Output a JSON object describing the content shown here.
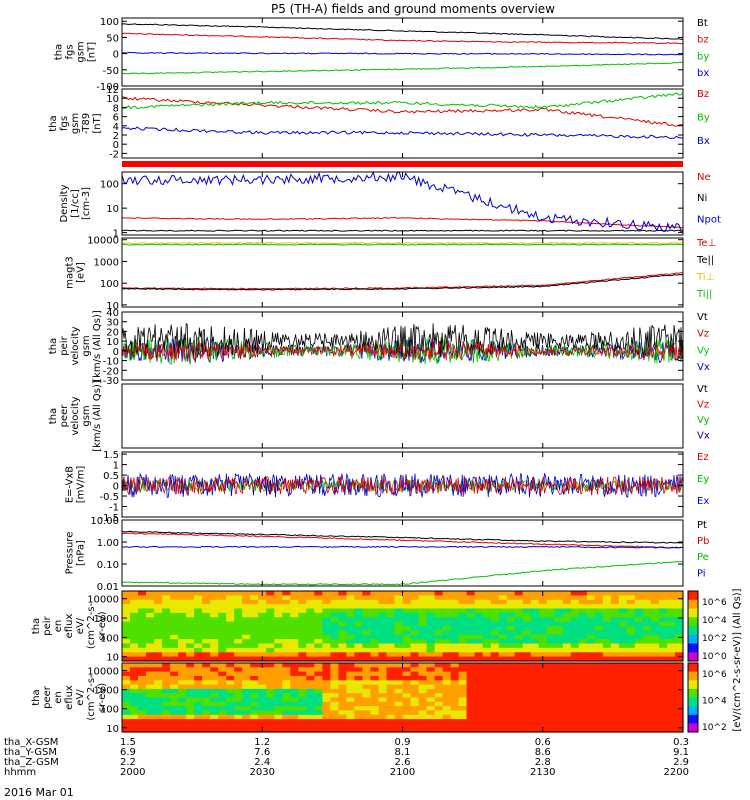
{
  "title": "P5 (TH-A) fields and ground moments overview",
  "date_label": "2016 Mar 01",
  "colorbar": {
    "label": "[eV/(cm^2-s-sr-eV)] (All Qs)]",
    "upper_ticks": [
      "10^6",
      "10^4",
      "10^2",
      "10^0"
    ],
    "lower_ticks": [
      "10^6",
      "10^4",
      "10^2"
    ],
    "colors": [
      "#d000d0",
      "#1010ff",
      "#00b0ff",
      "#00e080",
      "#50e000",
      "#e8e800",
      "#ffa000",
      "#ff2000"
    ]
  },
  "xaxis": {
    "rows": [
      {
        "label": "tha_X-GSM",
        "values": [
          "1.5",
          "1.2",
          "0.9",
          "0.6",
          "0.3"
        ]
      },
      {
        "label": "tha_Y-GSM",
        "values": [
          "6.9",
          "7.6",
          "8.1",
          "8.6",
          "9.1"
        ]
      },
      {
        "label": "tha_Z-GSM",
        "values": [
          "2.2",
          "2.4",
          "2.6",
          "2.8",
          "2.9"
        ]
      },
      {
        "label": "hhmm",
        "values": [
          "2000",
          "2030",
          "2100",
          "2130",
          "2200"
        ]
      }
    ]
  },
  "panels": [
    {
      "ylabel": [
        "tha",
        "fgs",
        "gsm",
        "[nT]"
      ],
      "ticks": [
        "100",
        "50",
        "0",
        "-50",
        "-100"
      ],
      "tick_values": [
        100,
        50,
        0,
        -50,
        -100
      ],
      "ylim": [
        -100,
        110
      ],
      "legend": [
        {
          "name": "Bt",
          "color": "#000000"
        },
        {
          "name": "bz",
          "color": "#e00000"
        },
        {
          "name": "by",
          "color": "#00c000"
        },
        {
          "name": "bx",
          "color": "#0000d0"
        }
      ]
    },
    {
      "ylabel": [
        "tha",
        "fgs",
        "gsm",
        "-T89",
        "[nT]"
      ],
      "ticks": [
        "12",
        "10",
        "8",
        "6",
        "4",
        "2",
        "0",
        "-2"
      ],
      "tick_values": [
        12,
        10,
        8,
        6,
        4,
        2,
        0,
        -2
      ],
      "ylim": [
        -3,
        12
      ],
      "legend": [
        {
          "name": "Bz",
          "color": "#e00000"
        },
        {
          "name": "By",
          "color": "#00c000"
        },
        {
          "name": "Bx",
          "color": "#0000d0"
        }
      ]
    },
    {
      "ylabel": [
        "Density",
        "[1/cc]",
        "[cm-3]"
      ],
      "ticks": [
        "100",
        "10",
        "1"
      ],
      "tick_values": [
        100,
        10,
        1
      ],
      "ylim": [
        0.8,
        300
      ],
      "log": true,
      "legend": [
        {
          "name": "Ne",
          "color": "#e00000"
        },
        {
          "name": "Ni",
          "color": "#000000"
        },
        {
          "name": "Npot",
          "color": "#0000d0"
        }
      ]
    },
    {
      "ylabel": [
        "magt3",
        "[eV]"
      ],
      "ticks": [
        "10000",
        "1000",
        "100",
        "10"
      ],
      "tick_values": [
        10000,
        1000,
        100,
        10
      ],
      "ylim": [
        8,
        12000
      ],
      "log": true,
      "legend": [
        {
          "name": "Te⊥",
          "color": "#e00000"
        },
        {
          "name": "Te||",
          "color": "#000000"
        },
        {
          "name": "Ti⊥",
          "color": "#e8c000"
        },
        {
          "name": "Ti||",
          "color": "#00c000"
        }
      ]
    },
    {
      "ylabel": [
        "tha",
        "peir",
        "velocity",
        "gsm",
        "[km/s (All Qs)]"
      ],
      "ticks": [
        "40",
        "30",
        "20",
        "10",
        "0",
        "-10",
        "-20",
        "-30"
      ],
      "tick_values": [
        40,
        30,
        20,
        10,
        0,
        -10,
        -20,
        -30
      ],
      "ylim": [
        -30,
        40
      ],
      "legend": [
        {
          "name": "Vt",
          "color": "#000000"
        },
        {
          "name": "Vz",
          "color": "#e00000"
        },
        {
          "name": "Vy",
          "color": "#00c000"
        },
        {
          "name": "Vx",
          "color": "#0000d0"
        }
      ]
    },
    {
      "ylabel": [
        "tha",
        "peer",
        "velocity",
        "gsm",
        "[km/s (All Qs)]"
      ],
      "ticks": [],
      "tick_values": [],
      "ylim": [
        0,
        1
      ],
      "legend": [
        {
          "name": "Vt",
          "color": "#000000"
        },
        {
          "name": "Vz",
          "color": "#e00000"
        },
        {
          "name": "Vy",
          "color": "#00c000"
        },
        {
          "name": "Vx",
          "color": "#0000d0"
        }
      ]
    },
    {
      "ylabel": [
        "E=-VxB",
        "[mV/m]"
      ],
      "ticks": [
        "1.5",
        "1",
        "0.5",
        "0",
        "-0.5",
        "-1",
        "-1.5"
      ],
      "tick_values": [
        1.5,
        1,
        0.5,
        0,
        -0.5,
        -1,
        -1.5
      ],
      "ylim": [
        -1.5,
        1.6
      ],
      "legend": [
        {
          "name": "Ez",
          "color": "#e00000"
        },
        {
          "name": "Ey",
          "color": "#00c000"
        },
        {
          "name": "Ex",
          "color": "#0000d0"
        }
      ]
    },
    {
      "ylabel": [
        "Pressure",
        "[nPa]"
      ],
      "ticks": [
        "10.00",
        "1.00",
        "0.10",
        "0.01"
      ],
      "tick_values": [
        10,
        1,
        0.1,
        0.01
      ],
      "ylim": [
        0.01,
        10
      ],
      "log": true,
      "legend": [
        {
          "name": "Pt",
          "color": "#000000"
        },
        {
          "name": "Pb",
          "color": "#e00000"
        },
        {
          "name": "Pe",
          "color": "#00c000"
        },
        {
          "name": "Pi",
          "color": "#0000d0"
        }
      ]
    },
    {
      "ylabel": [
        "tha",
        "peir",
        "en",
        "eflux",
        "eV/",
        "(cm^2-s-",
        "sr-eV)"
      ],
      "ticks": [
        "10000",
        "1000",
        "100",
        "10"
      ],
      "tick_values": [
        10000,
        1000,
        100,
        10
      ],
      "ylim": [
        6,
        25000
      ],
      "log": true,
      "spectrogram": true,
      "legend": []
    },
    {
      "ylabel": [
        "tha",
        "peer",
        "en",
        "eflux",
        "eV/",
        "(cm^2-s-",
        "sr-eV)"
      ],
      "ticks": [
        "10000",
        "1000",
        "100",
        "10"
      ],
      "tick_values": [
        10000,
        1000,
        100,
        10
      ],
      "ylim": [
        6,
        25000
      ],
      "log": true,
      "spectrogram": true,
      "legend": []
    }
  ],
  "chart_data": {
    "type": "line",
    "title": "P5 (TH-A) fields and ground moments overview",
    "x": [
      "2000",
      "2030",
      "2100",
      "2130",
      "2200"
    ],
    "xlabel": "hhmm",
    "series_panels": [
      {
        "panel": 0,
        "series": [
          {
            "name": "Bt",
            "values": [
              92,
              82,
              70,
              58,
              45
            ]
          },
          {
            "name": "bz",
            "values": [
              62,
              52,
              40,
              35,
              32
            ]
          },
          {
            "name": "by",
            "values": [
              -62,
              -55,
              -48,
              -40,
              -28
            ]
          },
          {
            "name": "bx",
            "values": [
              2,
              1,
              0,
              -1,
              -3
            ]
          }
        ]
      },
      {
        "panel": 1,
        "series": [
          {
            "name": "Bz",
            "values": [
              10,
              8.5,
              7,
              7.5,
              4
            ]
          },
          {
            "name": "By",
            "values": [
              8,
              9,
              9,
              8,
              11
            ]
          },
          {
            "name": "Bx",
            "values": [
              3.5,
              2.5,
              2.5,
              2,
              1.5
            ]
          }
        ]
      },
      {
        "panel": 2,
        "series": [
          {
            "name": "Ne",
            "values": [
              4,
              3.5,
              4,
              3,
              1.6
            ]
          },
          {
            "name": "Ni",
            "values": [
              1.2,
              1.2,
              1.2,
              1.2,
              1.2
            ]
          },
          {
            "name": "Npot",
            "values": [
              140,
              150,
              200,
              4,
              1.5
            ]
          }
        ]
      },
      {
        "panel": 3,
        "series": [
          {
            "name": "Te⊥",
            "values": [
              60,
              55,
              60,
              80,
              300
            ]
          },
          {
            "name": "Te||",
            "values": [
              55,
              50,
              55,
              70,
              260
            ]
          },
          {
            "name": "Ti⊥",
            "values": [
              7000,
              7000,
              7000,
              7000,
              7000
            ]
          },
          {
            "name": "Ti||",
            "values": [
              6000,
              6000,
              6000,
              6000,
              6000
            ]
          }
        ]
      },
      {
        "panel": 7,
        "series": [
          {
            "name": "Pt",
            "values": [
              3,
              2.2,
              1.6,
              1.1,
              0.9
            ]
          },
          {
            "name": "Pb",
            "values": [
              2.5,
              1.8,
              1.2,
              0.8,
              0.55
            ]
          },
          {
            "name": "Pe",
            "values": [
              0.015,
              0.012,
              0.012,
              0.05,
              0.13
            ]
          },
          {
            "name": "Pi",
            "values": [
              0.6,
              0.6,
              0.6,
              0.6,
              0.55
            ]
          }
        ]
      }
    ]
  }
}
